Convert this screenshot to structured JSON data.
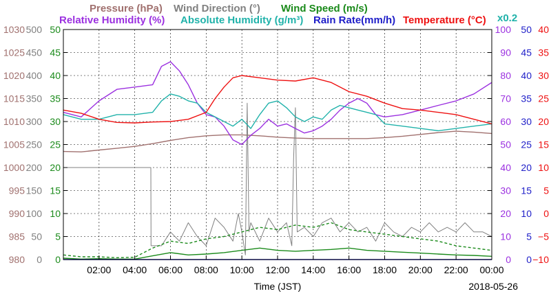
{
  "header": {
    "row1": [
      {
        "text": "Pressure (hPa)",
        "color": "#a0706e"
      },
      {
        "text": "Wind Direction (°)",
        "color": "#808080"
      },
      {
        "text": "Wind Speed (m/s)",
        "color": "#1a8a1a"
      }
    ],
    "row2": [
      {
        "text": "Relative Humidity (%)",
        "color": "#9b30e0"
      },
      {
        "text": "Absolute Humidity (g/m³)",
        "color": "#20b2aa"
      },
      {
        "text": "Rain Rate(mm/h)",
        "color": "#1e1ec8"
      },
      {
        "text": "Temperature (°C)",
        "color": "#ee1010"
      }
    ],
    "multiplier": "x0.2"
  },
  "chart_data": {
    "type": "line",
    "xlabel": "Time (JST)",
    "date_label": "2018-05-26",
    "xlim": [
      0,
      24
    ],
    "x_ticks": [
      "02:00",
      "04:00",
      "06:00",
      "08:00",
      "10:00",
      "12:00",
      "14:00",
      "16:00",
      "18:00",
      "20:00",
      "22:00",
      "00:00"
    ],
    "axes": {
      "pressure": {
        "color": "#a0706e",
        "range": [
          980,
          1030
        ],
        "ticks": [
          "980",
          "985",
          "990",
          "995",
          "1000",
          "1005",
          "1010",
          "1015",
          "1020",
          "1025",
          "1030"
        ]
      },
      "wind_direction": {
        "color": "#808080",
        "range": [
          0,
          500
        ],
        "ticks": [
          "0",
          "50",
          "100",
          "150",
          "200",
          "250",
          "300",
          "350",
          "400",
          "450",
          "500"
        ]
      },
      "wind_speed": {
        "color": "#1a8a1a",
        "range": [
          0,
          50
        ],
        "ticks": [
          "0",
          "5",
          "10",
          "15",
          "20",
          "25",
          "30",
          "35",
          "40",
          "45",
          "50"
        ]
      },
      "humidity": {
        "color": "#9b30e0",
        "range": [
          0,
          100
        ],
        "ticks": [
          "0",
          "10",
          "20",
          "30",
          "40",
          "50",
          "60",
          "70",
          "80",
          "90",
          "100"
        ]
      },
      "rain_rate": {
        "color": "#1e1ec8",
        "range": [
          0,
          50
        ],
        "ticks": [
          "0",
          "5",
          "10",
          "15",
          "20",
          "25",
          "30",
          "35",
          "40",
          "45",
          "50"
        ]
      },
      "temperature": {
        "color": "#ee1010",
        "range": [
          -10,
          40
        ],
        "ticks": [
          "−10",
          "−5",
          "0",
          "5",
          "10",
          "15",
          "20",
          "25",
          "30",
          "35",
          "40"
        ]
      }
    },
    "series": [
      {
        "key": "pressure",
        "color": "#a0706e",
        "x": [
          0,
          1,
          2,
          3,
          4,
          5,
          6,
          7,
          8,
          9,
          10,
          11,
          12,
          13,
          14,
          15,
          16,
          17,
          18,
          19,
          20,
          21,
          22,
          23,
          24
        ],
        "y": [
          1003.5,
          1003.4,
          1003.8,
          1004.2,
          1004.6,
          1005.2,
          1005.9,
          1006.5,
          1006.9,
          1007.1,
          1007.1,
          1006.9,
          1006.6,
          1006.4,
          1006.3,
          1006.3,
          1006.3,
          1006.3,
          1006.5,
          1006.8,
          1007.2,
          1007.6,
          1007.9,
          1007.7,
          1007.4
        ]
      },
      {
        "key": "wind_direction",
        "color": "#808080",
        "x": [
          0,
          4.9,
          4.91,
          5.5,
          6,
          6.5,
          7,
          7.5,
          8,
          8.5,
          9,
          9.5,
          9.8,
          10,
          10.2,
          10.3,
          10.4,
          10.5,
          11,
          11.5,
          12,
          12.5,
          12.8,
          12.9,
          13.0,
          13.1,
          13.5,
          14,
          14.5,
          15,
          15.5,
          16,
          16.5,
          17,
          17.5,
          18,
          18.5,
          19,
          19.5,
          20,
          20.5,
          21,
          21.5,
          22,
          22.5,
          23,
          23.5,
          24
        ],
        "y": [
          200,
          200,
          30,
          30,
          60,
          40,
          80,
          50,
          30,
          90,
          70,
          40,
          100,
          60,
          10,
          340,
          60,
          80,
          40,
          90,
          60,
          80,
          30,
          220,
          330,
          60,
          70,
          50,
          80,
          90,
          60,
          80,
          60,
          70,
          40,
          80,
          60,
          50,
          70,
          60,
          80,
          60,
          70,
          60,
          80,
          60,
          60,
          50
        ]
      },
      {
        "key": "wind_speed",
        "color": "#1a8a1a",
        "x": [
          0,
          1,
          2,
          3,
          4,
          5,
          6,
          7,
          8,
          9,
          10,
          11,
          12,
          13,
          14,
          15,
          16,
          17,
          18,
          19,
          20,
          21,
          22,
          23,
          24
        ],
        "y": [
          0.3,
          0.1,
          0.2,
          0.1,
          0.1,
          0.8,
          1.5,
          1.0,
          1.2,
          1.5,
          2.0,
          2.5,
          2.0,
          1.8,
          2.0,
          2.2,
          2.5,
          2.0,
          1.8,
          1.6,
          1.4,
          1.2,
          1.0,
          0.9,
          0.7
        ]
      },
      {
        "key": "wind_gust",
        "color": "#1a8a1a",
        "dashed": true,
        "x": [
          0,
          1,
          2,
          3,
          4,
          5,
          6,
          7,
          8,
          9,
          10,
          11,
          12,
          13,
          14,
          15,
          16,
          17,
          18,
          19,
          20,
          21,
          22,
          23,
          24
        ],
        "y": [
          1.0,
          0.6,
          0.6,
          0.4,
          0.5,
          2.5,
          4.0,
          3.5,
          4.5,
          5.0,
          6.0,
          7.0,
          6.5,
          7.5,
          7.0,
          8.0,
          6.5,
          6.0,
          5.5,
          5.0,
          4.5,
          4.0,
          3.0,
          2.5,
          2.0
        ]
      },
      {
        "key": "relative_humidity",
        "color": "#9b30e0",
        "x": [
          0,
          1,
          2,
          3,
          4,
          5,
          5.5,
          6,
          6.5,
          7,
          7.5,
          8,
          8.5,
          9,
          9.5,
          10,
          10.5,
          11,
          11.5,
          12,
          12.5,
          13,
          13.5,
          14,
          14.5,
          15,
          15.5,
          16,
          16.5,
          17,
          17.5,
          18,
          19,
          20,
          21,
          22,
          23,
          24
        ],
        "y": [
          64,
          62,
          69,
          74,
          75,
          76,
          84,
          86,
          82,
          76,
          68,
          63,
          62,
          58,
          52,
          50,
          54,
          57,
          61,
          58,
          59,
          57,
          55,
          56,
          58,
          61,
          65,
          68,
          70,
          68,
          63,
          62,
          63,
          65,
          67,
          69,
          72,
          77
        ]
      },
      {
        "key": "absolute_humidity",
        "color": "#20b2aa",
        "x": [
          0,
          1,
          2,
          3,
          4,
          5,
          5.5,
          6,
          6.5,
          7,
          7.5,
          8,
          8.5,
          9,
          9.5,
          10,
          10.5,
          11,
          11.5,
          12,
          12.5,
          13,
          13.5,
          14,
          14.5,
          15,
          15.5,
          16,
          16.5,
          17,
          17.5,
          18,
          19,
          20,
          21,
          22,
          23,
          24
        ],
        "y": [
          63,
          61,
          61,
          63,
          63,
          64,
          69,
          72,
          71,
          69,
          68,
          64,
          62,
          60,
          58,
          61,
          57,
          63,
          68,
          69,
          66,
          62,
          60,
          62,
          61,
          65,
          67,
          66,
          65,
          64,
          63,
          59,
          58,
          57,
          56,
          57,
          58,
          59
        ]
      },
      {
        "key": "temperature",
        "color": "#ee1010",
        "x": [
          0,
          1,
          2,
          3,
          4,
          5,
          6,
          7,
          8,
          8.5,
          9,
          9.5,
          10,
          11,
          12,
          13,
          14,
          15,
          16,
          17,
          18,
          19,
          20,
          21,
          22,
          23,
          24
        ],
        "y": [
          22.5,
          21.8,
          20.5,
          19.8,
          19.7,
          19.9,
          20.0,
          20.5,
          22.0,
          25.0,
          27.5,
          29.5,
          30.0,
          29.5,
          29.0,
          28.8,
          29.5,
          28.5,
          26.5,
          25.5,
          24.0,
          22.8,
          22.5,
          22.0,
          21.5,
          20.5,
          19.5
        ]
      },
      {
        "key": "rain_rate",
        "color": "#1e1ec8",
        "x": [
          0,
          24
        ],
        "y": [
          0,
          0
        ]
      }
    ]
  }
}
